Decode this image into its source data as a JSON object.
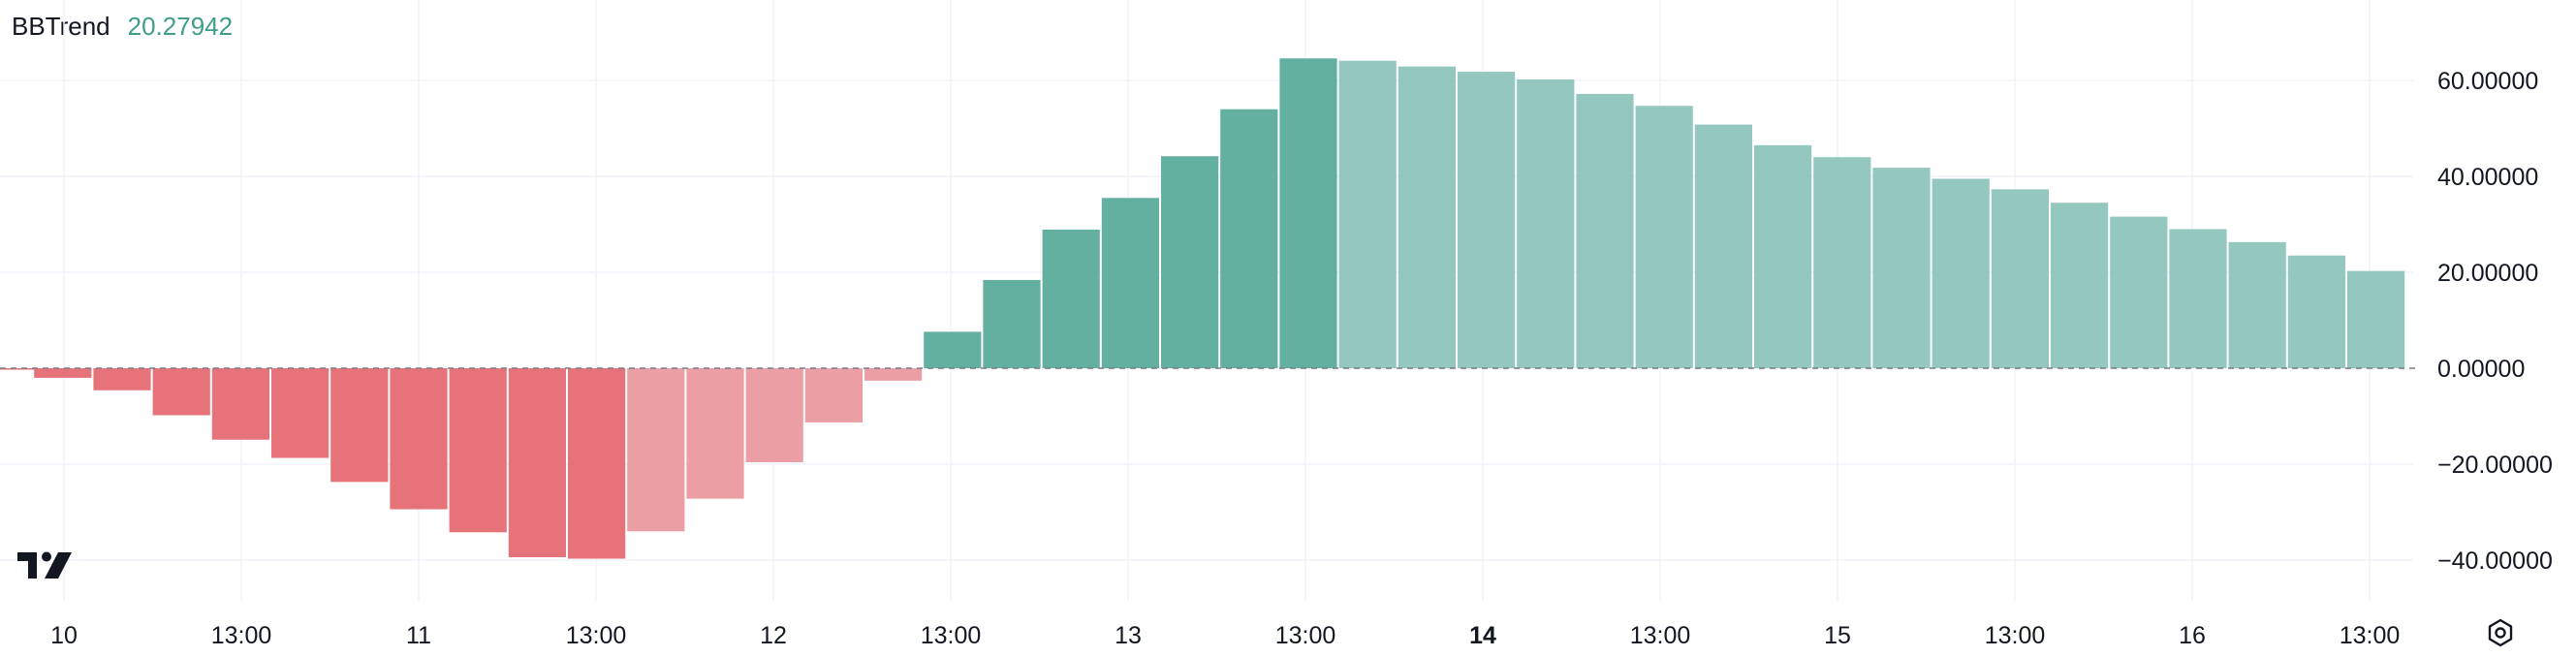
{
  "indicator": {
    "name": "BBTrend",
    "value": "20.27942"
  },
  "colors": {
    "neg_strong": "#e57379",
    "neg_light": "#eb9ea3",
    "pos_strong": "#63b0a1",
    "pos_light": "#94c8be",
    "zero_line": "#787b86",
    "grid": "#f0f3fa"
  },
  "icons": {
    "logo": "tradingview-logo-icon",
    "settings": "settings-gear-icon"
  },
  "chart_data": {
    "type": "bar",
    "title": "",
    "y_ticks": [
      "60.00000",
      "40.00000",
      "20.00000",
      "0.00000",
      "−20.00000",
      "−40.00000"
    ],
    "ylim": [
      -45,
      67
    ],
    "x_tick_labels": [
      {
        "label": "10",
        "bold": false
      },
      {
        "label": "13:00",
        "bold": false
      },
      {
        "label": "11",
        "bold": false
      },
      {
        "label": "13:00",
        "bold": false
      },
      {
        "label": "12",
        "bold": false
      },
      {
        "label": "13:00",
        "bold": false
      },
      {
        "label": "13",
        "bold": false
      },
      {
        "label": "13:00",
        "bold": false
      },
      {
        "label": "14",
        "bold": true
      },
      {
        "label": "13:00",
        "bold": false
      },
      {
        "label": "15",
        "bold": false
      },
      {
        "label": "13:00",
        "bold": false
      },
      {
        "label": "16",
        "bold": false
      },
      {
        "label": "13:00",
        "bold": false
      }
    ],
    "values": [
      -0.3,
      -2.0,
      -4.6,
      -9.8,
      -14.9,
      -18.7,
      -23.7,
      -29.4,
      -34.2,
      -39.4,
      -39.7,
      -34.0,
      -27.2,
      -19.6,
      -11.3,
      -2.6,
      7.6,
      18.4,
      28.9,
      35.5,
      44.2,
      54.0,
      64.6,
      64.1,
      62.9,
      61.8,
      60.2,
      57.2,
      54.7,
      50.8,
      46.5,
      44.0,
      41.8,
      39.5,
      37.3,
      34.5,
      31.6,
      29.0,
      26.3,
      23.5,
      20.27942
    ]
  }
}
